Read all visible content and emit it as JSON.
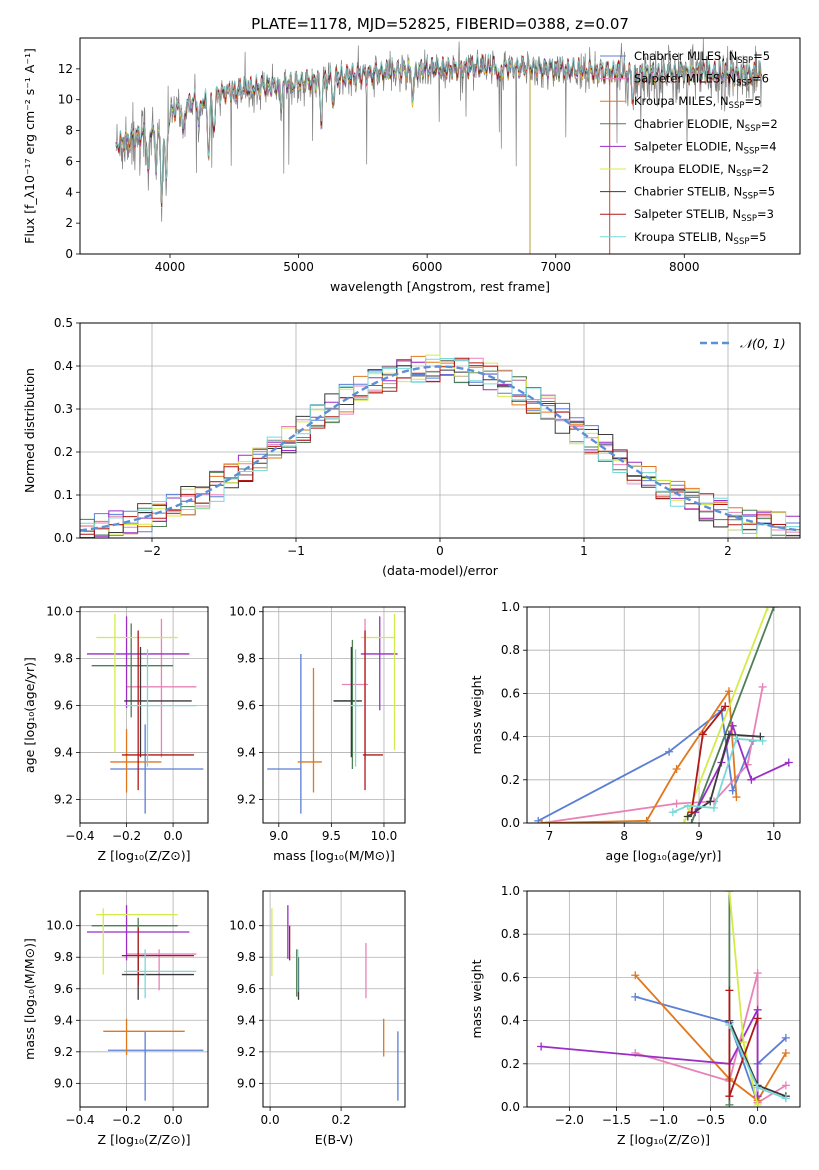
{
  "figure_title": "PLATE=1178, MJD=52825, FIBERID=0388, z=0.07",
  "chart_data": [
    {
      "id": "spectrum",
      "type": "line",
      "xlabel": "wavelength [Angstrom, rest frame]",
      "ylabel": "Flux [f_λ10⁻¹⁷ erg cm⁻² s⁻¹ A⁻¹]",
      "xlim": [
        3300,
        8900
      ],
      "ylim": [
        0,
        14
      ],
      "xticks": [
        4000,
        5000,
        6000,
        7000,
        8000
      ],
      "yticks": [
        0,
        2,
        4,
        6,
        8,
        10,
        12
      ],
      "grid": false,
      "legend_position": "right",
      "series": [
        {
          "name": "Chabrier MILES, N_SSP=5",
          "color": "#5b7fd6"
        },
        {
          "name": "Salpeter MILES, N_SSP=6",
          "color": "#e883b8"
        },
        {
          "name": "Kroupa MILES, N_SSP=5",
          "color": "#e0781e"
        },
        {
          "name": "Chabrier ELODIE, N_SSP=2",
          "color": "#4f7f55"
        },
        {
          "name": "Salpeter ELODIE, N_SSP=4",
          "color": "#9b2ec4"
        },
        {
          "name": "Kroupa ELODIE, N_SSP=2",
          "color": "#d4ec4a"
        },
        {
          "name": "Chabrier STELIB, N_SSP=5",
          "color": "#3a3a3a"
        },
        {
          "name": "Salpeter STELIB, N_SSP=3",
          "color": "#b01818"
        },
        {
          "name": "Kroupa STELIB, N_SSP=5",
          "color": "#7ad8d8"
        }
      ],
      "data_color": "#808080",
      "continuum": [
        [
          3580,
          7.0
        ],
        [
          3700,
          7.4
        ],
        [
          3800,
          7.7
        ],
        [
          3900,
          8.3
        ],
        [
          4000,
          9.0
        ],
        [
          4100,
          9.6
        ],
        [
          4200,
          9.8
        ],
        [
          4300,
          9.9
        ],
        [
          4400,
          10.3
        ],
        [
          4600,
          10.6
        ],
        [
          4800,
          10.9
        ],
        [
          5000,
          11.0
        ],
        [
          5200,
          11.2
        ],
        [
          5400,
          11.4
        ],
        [
          5600,
          11.6
        ],
        [
          5800,
          11.8
        ],
        [
          6000,
          11.9
        ],
        [
          6200,
          11.9
        ],
        [
          6400,
          12.0
        ],
        [
          6600,
          12.0
        ],
        [
          6800,
          12.0
        ],
        [
          7000,
          11.9
        ],
        [
          7200,
          11.8
        ],
        [
          7400,
          11.7
        ],
        [
          7600,
          11.6
        ],
        [
          7800,
          11.6
        ],
        [
          8000,
          11.6
        ],
        [
          8200,
          11.6
        ],
        [
          8400,
          11.5
        ],
        [
          8600,
          11.6
        ]
      ],
      "absorption_lines": [
        [
          3830,
          2.5
        ],
        [
          3890,
          3.0
        ],
        [
          3934,
          5.5
        ],
        [
          3970,
          4.5
        ],
        [
          4102,
          2.0
        ],
        [
          4227,
          1.5
        ],
        [
          4300,
          3.5
        ],
        [
          4340,
          2.0
        ],
        [
          4861,
          1.5
        ],
        [
          5175,
          2.5
        ],
        [
          5270,
          1.5
        ],
        [
          5890,
          2.0
        ],
        [
          6563,
          1.0
        ],
        [
          7600,
          1.5
        ]
      ]
    },
    {
      "id": "residuals",
      "type": "histogram",
      "xlabel": "(data-model)/error",
      "ylabel": "Normed distribution",
      "xlim": [
        -2.5,
        2.5
      ],
      "ylim": [
        0,
        0.5
      ],
      "xticks": [
        -2,
        -1,
        0,
        1,
        2
      ],
      "yticks": [
        0.0,
        0.1,
        0.2,
        0.3,
        0.4,
        0.5
      ],
      "grid": true,
      "legend": "𝒩(0, 1)",
      "legend_position": "top-right",
      "bin_width": 0.1,
      "gaussian": {
        "mean": 0,
        "sigma": 1,
        "color": "#5b8fd6"
      }
    },
    {
      "id": "age_vs_Z",
      "type": "errorbar",
      "xlabel": "Z [log₁₀(Z/Z⊙)]",
      "ylabel": "age  [log₁₀(age/yr)]",
      "xlim": [
        -0.4,
        0.15
      ],
      "ylim": [
        9.1,
        10.02
      ],
      "xticks": [
        -0.4,
        -0.2,
        0.0
      ],
      "yticks": [
        9.2,
        9.4,
        9.6,
        9.8,
        10.0
      ],
      "grid": true,
      "points": [
        {
          "c": "#5b7fd6",
          "x": -0.12,
          "y": 9.33,
          "xlo": -0.27,
          "xhi": 0.13,
          "ylo": 9.14,
          "yhi": 9.52
        },
        {
          "c": "#e883b8",
          "x": -0.05,
          "y": 9.68,
          "xlo": -0.2,
          "xhi": 0.1,
          "ylo": 9.38,
          "yhi": 9.97
        },
        {
          "c": "#e0781e",
          "x": -0.2,
          "y": 9.36,
          "xlo": -0.27,
          "xhi": -0.05,
          "ylo": 9.23,
          "yhi": 9.5
        },
        {
          "c": "#4f7f55",
          "x": -0.18,
          "y": 9.77,
          "xlo": -0.35,
          "xhi": 0.0,
          "ylo": 9.55,
          "yhi": 9.95
        },
        {
          "c": "#9b2ec4",
          "x": -0.2,
          "y": 9.82,
          "xlo": -0.37,
          "xhi": 0.07,
          "ylo": 9.59,
          "yhi": 9.98
        },
        {
          "c": "#d4ec4a",
          "x": -0.25,
          "y": 9.89,
          "xlo": -0.33,
          "xhi": 0.02,
          "ylo": 9.4,
          "yhi": 9.99
        },
        {
          "c": "#3a3a3a",
          "x": -0.14,
          "y": 9.62,
          "xlo": -0.21,
          "xhi": 0.08,
          "ylo": 9.38,
          "yhi": 9.85
        },
        {
          "c": "#b01818",
          "x": -0.15,
          "y": 9.39,
          "xlo": -0.22,
          "xhi": 0.09,
          "ylo": 9.24,
          "yhi": 9.92
        },
        {
          "c": "#7ad8d8",
          "x": -0.11,
          "y": 9.6,
          "xlo": -0.21,
          "xhi": 0.1,
          "ylo": 9.34,
          "yhi": 9.84
        }
      ]
    },
    {
      "id": "age_vs_mass",
      "type": "errorbar",
      "xlabel": "mass [log₁₀(M/M⊙)]",
      "ylabel": "",
      "xlim": [
        8.85,
        10.2
      ],
      "ylim": [
        9.1,
        10.02
      ],
      "xticks": [
        9.0,
        9.5,
        10.0
      ],
      "yticks": [
        9.2,
        9.4,
        9.6,
        9.8,
        10.0
      ],
      "grid": true,
      "points": [
        {
          "c": "#5b7fd6",
          "x": 9.21,
          "y": 9.33,
          "xlo": 8.89,
          "xhi": 9.21,
          "ylo": 9.14,
          "yhi": 9.82
        },
        {
          "c": "#e883b8",
          "x": 9.82,
          "y": 9.69,
          "xlo": 9.6,
          "xhi": 9.85,
          "ylo": 9.37,
          "yhi": 9.97
        },
        {
          "c": "#e0781e",
          "x": 9.33,
          "y": 9.36,
          "xlo": 9.18,
          "xhi": 9.41,
          "ylo": 9.23,
          "yhi": 9.76
        },
        {
          "c": "#4f7f55",
          "x": 9.7,
          "y": 9.62,
          "xlo": 9.52,
          "xhi": 9.72,
          "ylo": 9.33,
          "yhi": 9.88
        },
        {
          "c": "#9b2ec4",
          "x": 9.96,
          "y": 9.82,
          "xlo": 9.78,
          "xhi": 10.13,
          "ylo": 9.58,
          "yhi": 9.98
        },
        {
          "c": "#d4ec4a",
          "x": 10.1,
          "y": 9.89,
          "xlo": 9.78,
          "xhi": 10.11,
          "ylo": 9.41,
          "yhi": 9.99
        },
        {
          "c": "#3a3a3a",
          "x": 9.69,
          "y": 9.62,
          "xlo": 9.52,
          "xhi": 9.79,
          "ylo": 9.38,
          "yhi": 9.85
        },
        {
          "c": "#b01818",
          "x": 9.82,
          "y": 9.39,
          "xlo": 9.8,
          "xhi": 9.99,
          "ylo": 9.24,
          "yhi": 9.92
        },
        {
          "c": "#7ad8d8",
          "x": 9.73,
          "y": 9.6,
          "xlo": 9.68,
          "xhi": 9.8,
          "ylo": 9.34,
          "yhi": 9.84
        }
      ]
    },
    {
      "id": "mass_weight_vs_age",
      "type": "line",
      "xlabel": "age  [log₁₀(age/yr)]",
      "ylabel": "mass weight",
      "xlim": [
        6.7,
        10.35
      ],
      "ylim": [
        0,
        1.0
      ],
      "xticks": [
        7,
        8,
        9,
        10
      ],
      "yticks": [
        0.0,
        0.2,
        0.4,
        0.6,
        0.8,
        1.0
      ],
      "grid": true,
      "series": [
        {
          "c": "#5b7fd6",
          "pts": [
            [
              6.85,
              0.01
            ],
            [
              8.6,
              0.33
            ],
            [
              9.3,
              0.52
            ],
            [
              9.45,
              0.15
            ],
            [
              9.72,
              0.38
            ]
          ]
        },
        {
          "c": "#e883b8",
          "pts": [
            [
              6.9,
              0.0
            ],
            [
              8.7,
              0.09
            ],
            [
              9.2,
              0.1
            ],
            [
              9.65,
              0.27
            ],
            [
              9.85,
              0.63
            ]
          ]
        },
        {
          "c": "#e0781e",
          "pts": [
            [
              6.9,
              0.0
            ],
            [
              8.3,
              0.01
            ],
            [
              8.7,
              0.25
            ],
            [
              9.4,
              0.61
            ],
            [
              9.5,
              0.12
            ]
          ]
        },
        {
          "c": "#4f7f55",
          "pts": [
            [
              8.9,
              0.0
            ],
            [
              10.0,
              1.0
            ]
          ]
        },
        {
          "c": "#9b2ec4",
          "pts": [
            [
              8.95,
              0.05
            ],
            [
              9.3,
              0.28
            ],
            [
              9.45,
              0.45
            ],
            [
              9.7,
              0.2
            ],
            [
              10.2,
              0.28
            ]
          ]
        },
        {
          "c": "#d4ec4a",
          "pts": [
            [
              8.8,
              0.0
            ],
            [
              9.92,
              1.0
            ]
          ]
        },
        {
          "c": "#3a3a3a",
          "pts": [
            [
              8.85,
              0.03
            ],
            [
              9.15,
              0.1
            ],
            [
              9.4,
              0.41
            ],
            [
              9.82,
              0.4
            ]
          ]
        },
        {
          "c": "#b01818",
          "pts": [
            [
              8.9,
              0.05
            ],
            [
              9.05,
              0.41
            ],
            [
              9.35,
              0.54
            ]
          ]
        },
        {
          "c": "#7ad8d8",
          "pts": [
            [
              8.65,
              0.05
            ],
            [
              8.85,
              0.08
            ],
            [
              9.2,
              0.07
            ],
            [
              9.5,
              0.39
            ],
            [
              9.85,
              0.38
            ]
          ]
        }
      ]
    },
    {
      "id": "mass_vs_Z",
      "type": "errorbar",
      "xlabel": "Z [log₁₀(Z/Z⊙)]",
      "ylabel": "mass [log₁₀(M/M⊙)]",
      "xlim": [
        -0.4,
        0.15
      ],
      "ylim": [
        8.85,
        10.22
      ],
      "xticks": [
        -0.4,
        -0.2,
        0.0
      ],
      "yticks": [
        9.0,
        9.2,
        9.4,
        9.6,
        9.8,
        10.0
      ],
      "grid": true,
      "points": [
        {
          "c": "#5b7fd6",
          "x": -0.12,
          "y": 9.21,
          "xlo": -0.28,
          "xhi": 0.13,
          "ylo": 8.89,
          "yhi": 9.33
        },
        {
          "c": "#e883b8",
          "x": -0.06,
          "y": 9.82,
          "xlo": -0.2,
          "xhi": 0.1,
          "ylo": 9.59,
          "yhi": 9.85
        },
        {
          "c": "#e0781e",
          "x": -0.2,
          "y": 9.33,
          "xlo": -0.3,
          "xhi": 0.05,
          "ylo": 9.18,
          "yhi": 9.41
        },
        {
          "c": "#4f7f55",
          "x": -0.15,
          "y": 10.0,
          "xlo": -0.35,
          "xhi": 0.02,
          "ylo": 9.72,
          "yhi": 10.05
        },
        {
          "c": "#9b2ec4",
          "x": -0.2,
          "y": 9.96,
          "xlo": -0.37,
          "xhi": 0.07,
          "ylo": 9.78,
          "yhi": 10.13
        },
        {
          "c": "#d4ec4a",
          "x": -0.3,
          "y": 10.07,
          "xlo": -0.33,
          "xhi": 0.02,
          "ylo": 9.69,
          "yhi": 10.11
        },
        {
          "c": "#3a3a3a",
          "x": -0.15,
          "y": 9.69,
          "xlo": -0.22,
          "xhi": 0.09,
          "ylo": 9.53,
          "yhi": 9.8
        },
        {
          "c": "#b01818",
          "x": -0.15,
          "y": 9.81,
          "xlo": -0.22,
          "xhi": 0.09,
          "ylo": 9.62,
          "yhi": 9.99
        },
        {
          "c": "#7ad8d8",
          "x": -0.12,
          "y": 9.71,
          "xlo": -0.21,
          "xhi": 0.1,
          "ylo": 9.54,
          "yhi": 9.85
        }
      ]
    },
    {
      "id": "mass_vs_ebv",
      "type": "errorbar",
      "xlabel": "E(B-V)",
      "ylabel": "",
      "xlim": [
        -0.02,
        0.38
      ],
      "ylim": [
        8.85,
        10.22
      ],
      "xticks": [
        0.0,
        0.2
      ],
      "yticks": [
        9.0,
        9.2,
        9.4,
        9.6,
        9.8,
        10.0
      ],
      "grid": true,
      "points": [
        {
          "c": "#5b7fd6",
          "x": 0.36,
          "y": 9.21,
          "ylo": 8.89,
          "yhi": 9.33
        },
        {
          "c": "#e883b8",
          "x": 0.27,
          "y": 9.71,
          "ylo": 9.54,
          "yhi": 9.89
        },
        {
          "c": "#e0781e",
          "x": 0.32,
          "y": 9.29,
          "ylo": 9.17,
          "yhi": 9.41
        },
        {
          "c": "#4f7f55",
          "x": 0.075,
          "y": 9.69,
          "ylo": 9.55,
          "yhi": 9.85
        },
        {
          "c": "#9b2ec4",
          "x": 0.05,
          "y": 9.96,
          "ylo": 9.79,
          "yhi": 10.13
        },
        {
          "c": "#d4ec4a",
          "x": 0.005,
          "y": 9.89,
          "ylo": 9.68,
          "yhi": 10.11
        },
        {
          "c": "#3a3a3a",
          "x": 0.08,
          "y": 9.69,
          "ylo": 9.53,
          "yhi": 9.8
        },
        {
          "c": "#b01818",
          "x": 0.055,
          "y": 9.89,
          "ylo": 9.78,
          "yhi": 10.0
        },
        {
          "c": "#7ad8d8",
          "x": 0.078,
          "y": 9.71,
          "ylo": 9.58,
          "yhi": 9.85
        }
      ]
    },
    {
      "id": "mass_weight_vs_Z",
      "type": "line",
      "xlabel": "Z [log₁₀(Z/Z⊙)]",
      "ylabel": "mass weight",
      "xlim": [
        -2.45,
        0.45
      ],
      "ylim": [
        0,
        1.0
      ],
      "xticks": [
        -2.0,
        -1.5,
        -1.0,
        -0.5,
        0.0
      ],
      "yticks": [
        0.0,
        0.2,
        0.4,
        0.6,
        0.8,
        1.0
      ],
      "grid": true,
      "series": [
        {
          "c": "#5b7fd6",
          "pts": [
            [
              -1.3,
              0.51
            ],
            [
              -0.3,
              0.39
            ],
            [
              0.0,
              0.02
            ],
            [
              0.0,
              0.2
            ],
            [
              0.3,
              0.32
            ]
          ]
        },
        {
          "c": "#e883b8",
          "pts": [
            [
              -1.3,
              0.25
            ],
            [
              -0.3,
              0.12
            ],
            [
              0.0,
              0.62
            ],
            [
              0.0,
              0.02
            ],
            [
              0.3,
              0.1
            ]
          ]
        },
        {
          "c": "#e0781e",
          "pts": [
            [
              -1.3,
              0.61
            ],
            [
              -0.3,
              0.13
            ],
            [
              0.0,
              0.03
            ],
            [
              0.3,
              0.25
            ]
          ]
        },
        {
          "c": "#4f7f55",
          "pts": [
            [
              -0.3,
              1.0
            ],
            [
              -0.3,
              0.01
            ]
          ]
        },
        {
          "c": "#9b2ec4",
          "pts": [
            [
              -2.3,
              0.28
            ],
            [
              -0.3,
              0.2
            ],
            [
              0.0,
              0.45
            ],
            [
              0.0,
              0.05
            ]
          ]
        },
        {
          "c": "#d4ec4a",
          "pts": [
            [
              -0.3,
              1.0
            ],
            [
              -0.15,
              0.3
            ],
            [
              0.0,
              0.01
            ]
          ]
        },
        {
          "c": "#3a3a3a",
          "pts": [
            [
              -0.3,
              0.4
            ],
            [
              0.0,
              0.1
            ],
            [
              0.3,
              0.05
            ]
          ]
        },
        {
          "c": "#b01818",
          "pts": [
            [
              -0.3,
              0.54
            ],
            [
              -0.3,
              0.05
            ],
            [
              0.0,
              0.41
            ]
          ]
        },
        {
          "c": "#7ad8d8",
          "pts": [
            [
              -0.3,
              0.38
            ],
            [
              0.0,
              0.09
            ],
            [
              0.3,
              0.04
            ]
          ]
        }
      ]
    }
  ]
}
